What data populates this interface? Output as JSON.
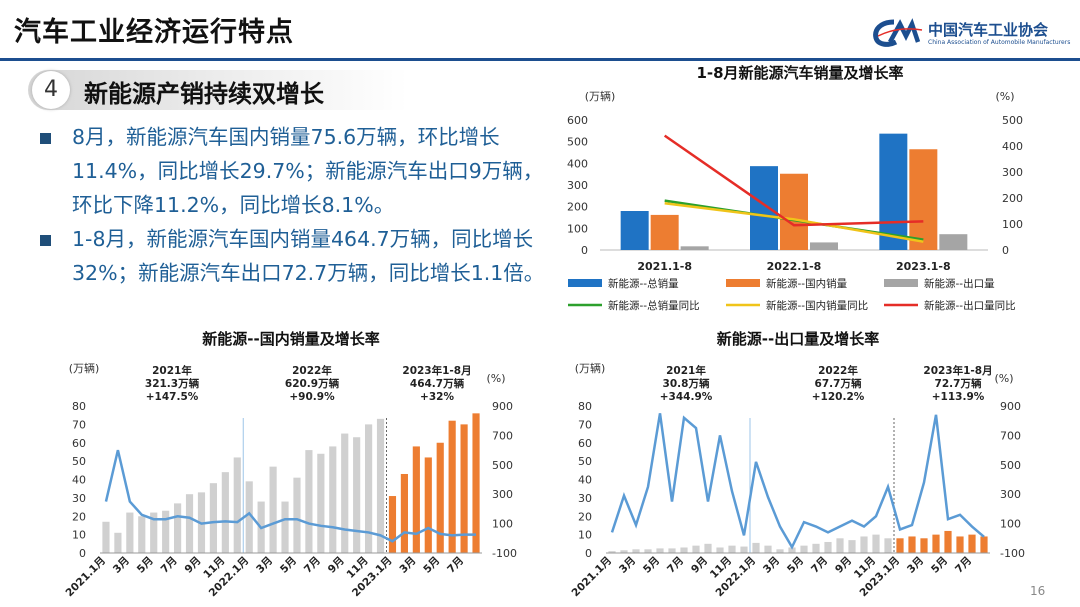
{
  "header": {
    "title": "汽车工业经济运行特点"
  },
  "logo": {
    "name": "中国汽车工业协会",
    "subtitle": "China Association of Automobile Manufacturers"
  },
  "section": {
    "number": "4",
    "title": "新能源产销持续双增长"
  },
  "bullets": [
    "8月，新能源汽车国内销量75.6万辆，环比增长11.4%，同比增长29.7%；新能源汽车出口9万辆，环比下降11.2%，同比增长8.1%。",
    "1-8月，新能源汽车国内销量464.7万辆，同比增长32%；新能源汽车出口72.7万辆，同比增长1.1倍。"
  ],
  "page_number": "16",
  "colors": {
    "blue": "#1f73c4",
    "orange": "#ed7d31",
    "gray": "#a5a5a5",
    "lightgray": "#d0d0d0",
    "green": "#2ca02c",
    "yellow": "#f0c419",
    "red": "#e52d27",
    "line_blue": "#5b9bd5",
    "navy": "#1c4e8f"
  },
  "chart_data": [
    {
      "type": "bar",
      "title": "1-8月新能源汽车销量及增长率",
      "ylabel": "(万辆)",
      "y2label": "(%)",
      "ylim": [
        0,
        600
      ],
      "y2lim": [
        0,
        500
      ],
      "yticks": [
        0,
        100,
        200,
        300,
        400,
        500,
        600
      ],
      "y2ticks": [
        0,
        100,
        200,
        300,
        400,
        500
      ],
      "categories": [
        "2021.1-8",
        "2022.1-8",
        "2023.1-8"
      ],
      "series": [
        {
          "name": "新能源--总销量",
          "type": "bar",
          "values": [
            180,
            387,
            537
          ]
        },
        {
          "name": "新能源--国内销量",
          "type": "bar",
          "values": [
            162,
            352,
            465
          ]
        },
        {
          "name": "新能源--出口量",
          "type": "bar",
          "values": [
            17,
            35,
            73
          ]
        },
        {
          "name": "新能源--总销量同比",
          "type": "line",
          "axis": "right",
          "values": [
            190,
            115,
            40
          ]
        },
        {
          "name": "新能源--国内销量同比",
          "type": "line",
          "axis": "right",
          "values": [
            180,
            118,
            32
          ]
        },
        {
          "name": "新能源--出口量同比",
          "type": "line",
          "axis": "right",
          "values": [
            440,
            95,
            110
          ]
        }
      ]
    },
    {
      "type": "bar",
      "title": "新能源--国内销量及增长率",
      "ylabel": "(万辆)",
      "y2label": "(%)",
      "ylim": [
        0,
        80
      ],
      "y2lim": [
        -100,
        900
      ],
      "yticks": [
        0,
        10,
        20,
        30,
        40,
        50,
        60,
        70,
        80
      ],
      "y2ticks": [
        -100,
        100,
        300,
        500,
        700,
        900
      ],
      "x_labels": [
        "2021.1月",
        "3月",
        "5月",
        "7月",
        "9月",
        "11月",
        "2022.1月",
        "3月",
        "5月",
        "7月",
        "9月",
        "11月",
        "2023.1月",
        "3月",
        "5月",
        "7月"
      ],
      "bars": [
        17,
        11,
        22,
        20,
        22,
        23,
        27,
        32,
        33,
        38,
        44,
        52,
        39,
        28,
        47,
        28,
        41,
        56,
        54,
        58,
        65,
        63,
        70,
        73,
        31,
        43,
        58,
        52,
        60,
        72,
        70,
        76
      ],
      "highlight_from": 24,
      "growth": [
        250,
        600,
        250,
        160,
        130,
        130,
        150,
        140,
        100,
        110,
        115,
        110,
        170,
        70,
        100,
        130,
        130,
        100,
        85,
        75,
        60,
        50,
        40,
        20,
        -20,
        40,
        30,
        70,
        30,
        20,
        25,
        25
      ],
      "annotations": [
        {
          "lines": [
            "2021年",
            "321.3万辆",
            "+147.5%"
          ]
        },
        {
          "lines": [
            "2022年",
            "620.9万辆",
            "+90.9%"
          ]
        },
        {
          "lines": [
            "2023年1-8月",
            "464.7万辆",
            "+32%"
          ]
        }
      ]
    },
    {
      "type": "bar",
      "title": "新能源--出口量及增长率",
      "ylabel": "(万辆)",
      "y2label": "(%)",
      "ylim": [
        0,
        80
      ],
      "y2lim": [
        -100,
        900
      ],
      "yticks": [
        0,
        10,
        20,
        30,
        40,
        50,
        60,
        70,
        80
      ],
      "y2ticks": [
        -100,
        100,
        300,
        500,
        700,
        900
      ],
      "x_labels": [
        "2021.1月",
        "3月",
        "5月",
        "7月",
        "9月",
        "11月",
        "2022.1月",
        "3月",
        "5月",
        "7月",
        "9月",
        "11月",
        "2023.1月",
        "3月",
        "5月",
        "7月"
      ],
      "bars": [
        1,
        1.5,
        2,
        2,
        2.5,
        2.5,
        3,
        4,
        5,
        3,
        4,
        3.5,
        5.5,
        4,
        2,
        3,
        4,
        5,
        6,
        8,
        7,
        9,
        10,
        8,
        8,
        9,
        8,
        10,
        12,
        9,
        10,
        9
      ],
      "highlight_from": 24,
      "growth": [
        40,
        290,
        90,
        350,
        850,
        250,
        820,
        750,
        250,
        700,
        320,
        20,
        520,
        280,
        80,
        -60,
        110,
        80,
        40,
        80,
        120,
        80,
        150,
        350,
        60,
        90,
        380,
        840,
        130,
        160,
        80,
        10
      ],
      "annotations": [
        {
          "lines": [
            "2021年",
            "30.8万辆",
            "+344.9%"
          ]
        },
        {
          "lines": [
            "2022年",
            "67.7万辆",
            "+120.2%"
          ]
        },
        {
          "lines": [
            "2023年1-8月",
            "72.7万辆",
            "+113.9%"
          ]
        }
      ]
    }
  ]
}
